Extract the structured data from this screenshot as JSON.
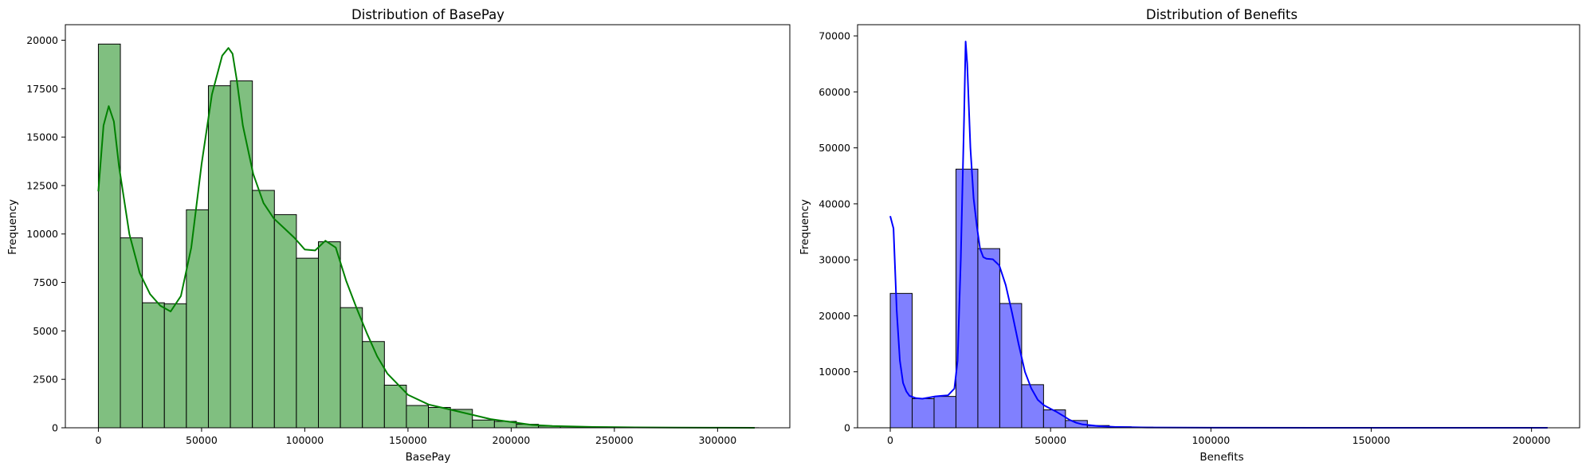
{
  "chart_data": [
    {
      "type": "bar",
      "subtype": "histogram-with-kde",
      "title": "Distribution of BasePay",
      "xlabel": "BasePay",
      "ylabel": "Frequency",
      "color": "#008000",
      "bar_fill": "#80bf80",
      "xlim": [
        -16000,
        335000
      ],
      "ylim": [
        0,
        20800
      ],
      "xticks": [
        0,
        50000,
        100000,
        150000,
        200000,
        250000,
        300000
      ],
      "yticks": [
        0,
        2500,
        5000,
        7500,
        10000,
        12500,
        15000,
        17500,
        20000
      ],
      "bin_start": 0,
      "bin_width": 10660,
      "values": [
        19800,
        9800,
        6450,
        6400,
        11250,
        17650,
        17900,
        12250,
        11000,
        8750,
        9600,
        6200,
        4450,
        2200,
        1150,
        1050,
        950,
        400,
        330,
        180,
        90,
        60,
        40,
        30,
        20,
        15,
        10,
        8,
        5,
        3
      ],
      "kde": {
        "x": [
          0,
          2500,
          5000,
          7500,
          10000,
          15000,
          20000,
          25000,
          30000,
          35000,
          40000,
          45000,
          50000,
          55000,
          60000,
          63000,
          65000,
          67000,
          70000,
          75000,
          80000,
          85000,
          90000,
          95000,
          100000,
          105000,
          110000,
          115000,
          120000,
          125000,
          130000,
          135000,
          140000,
          150000,
          160000,
          170000,
          180000,
          190000,
          200000,
          210000,
          220000,
          240000,
          260000,
          280000,
          300000,
          318000
        ],
        "y": [
          12200,
          15600,
          16600,
          15800,
          13500,
          10000,
          8000,
          6900,
          6300,
          6000,
          6800,
          9300,
          13600,
          17200,
          19200,
          19600,
          19300,
          18000,
          15600,
          13100,
          11600,
          10800,
          10300,
          9800,
          9200,
          9150,
          9650,
          9300,
          7600,
          6200,
          4900,
          3700,
          2800,
          1700,
          1200,
          950,
          700,
          450,
          300,
          150,
          90,
          40,
          20,
          10,
          5,
          2
        ]
      }
    },
    {
      "type": "bar",
      "subtype": "histogram-with-kde",
      "title": "Distribution of Benefits",
      "xlabel": "Benefits",
      "ylabel": "Frequency",
      "color": "#0000ff",
      "bar_fill": "#8080ff",
      "xlim": [
        -10200,
        215000
      ],
      "ylim": [
        0,
        72000
      ],
      "xticks": [
        0,
        50000,
        100000,
        150000,
        200000
      ],
      "yticks": [
        0,
        10000,
        20000,
        30000,
        40000,
        50000,
        60000,
        70000
      ],
      "bin_start": 0,
      "bin_width": 6830,
      "values": [
        24000,
        5200,
        5600,
        46200,
        32000,
        22200,
        7700,
        3200,
        1300,
        400,
        180,
        100,
        60,
        40,
        30,
        20,
        15,
        10,
        8,
        6,
        5,
        4,
        3,
        2,
        2,
        1,
        1,
        1,
        1,
        1
      ],
      "kde": {
        "x": [
          0,
          1000,
          2000,
          3000,
          4000,
          5000,
          6000,
          8000,
          10000,
          12000,
          14000,
          16000,
          18000,
          20000,
          21000,
          22000,
          23000,
          23500,
          24000,
          25000,
          26000,
          27000,
          28000,
          29000,
          30000,
          32000,
          34000,
          36000,
          38000,
          40000,
          42000,
          44000,
          46000,
          48000,
          50000,
          52000,
          54000,
          56000,
          58000,
          60000,
          65000,
          70000,
          80000,
          100000,
          150000,
          205000
        ],
        "y": [
          37800,
          35600,
          21000,
          12000,
          8000,
          6500,
          5700,
          5300,
          5200,
          5400,
          5600,
          5700,
          5800,
          7000,
          12000,
          30000,
          55000,
          69000,
          65000,
          50000,
          41000,
          36000,
          32000,
          30500,
          30200,
          30100,
          29000,
          25500,
          20500,
          15000,
          10000,
          7000,
          5000,
          4000,
          3400,
          2800,
          2100,
          1400,
          900,
          600,
          300,
          150,
          60,
          20,
          5,
          2
        ]
      }
    }
  ]
}
